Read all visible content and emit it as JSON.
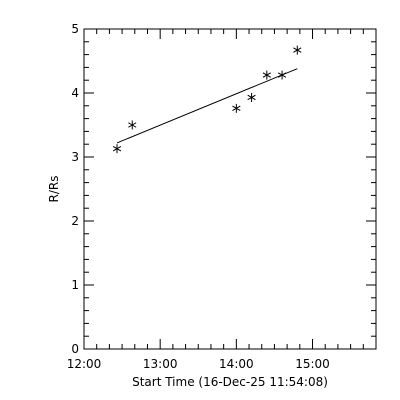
{
  "chart_data": {
    "type": "scatter",
    "title": "",
    "xlabel": "Start Time (16-Dec-25 11:54:08)",
    "ylabel": "R/Rs",
    "xlim": [
      "12:00",
      "15:50"
    ],
    "ylim": [
      0,
      5
    ],
    "x_ticks": [
      "12:00",
      "13:00",
      "14:00",
      "15:00"
    ],
    "y_ticks": [
      "0",
      "1",
      "2",
      "3",
      "4",
      "5"
    ],
    "grid": false,
    "points": [
      {
        "x": "12:26",
        "y": 3.13
      },
      {
        "x": "12:38",
        "y": 3.5
      },
      {
        "x": "14:00",
        "y": 3.76
      },
      {
        "x": "14:12",
        "y": 3.93
      },
      {
        "x": "14:24",
        "y": 4.28
      },
      {
        "x": "14:36",
        "y": 4.28
      },
      {
        "x": "14:48",
        "y": 4.67
      }
    ],
    "fit_line": [
      {
        "x": "12:26",
        "y": 3.22
      },
      {
        "x": "14:48",
        "y": 4.38
      }
    ]
  }
}
